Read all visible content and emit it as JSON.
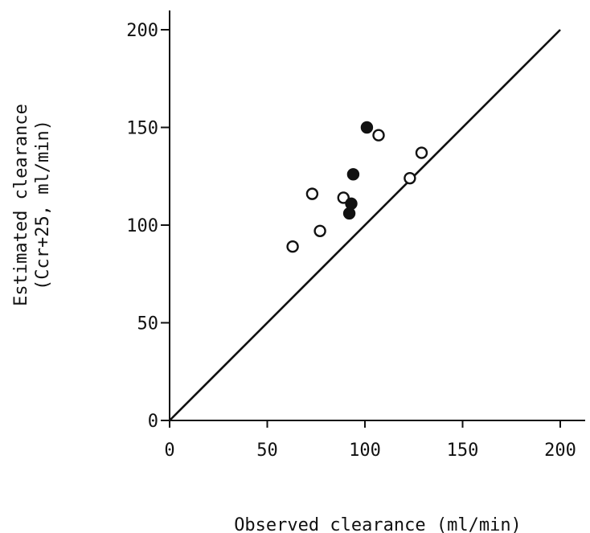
{
  "chart_data": {
    "type": "scatter",
    "xlabel": "Observed clearance (ml/min)",
    "ylabel_line1": "Estimated clearance",
    "ylabel_line2": "(Ccr+25, ml/min)",
    "xlim": [
      0,
      210
    ],
    "ylim": [
      0,
      210
    ],
    "x_ticks": [
      0,
      50,
      100,
      150,
      200
    ],
    "y_ticks": [
      0,
      50,
      100,
      150,
      200
    ],
    "x_tick_labels": [
      "0",
      "50",
      "100",
      "150",
      "200"
    ],
    "y_tick_labels": [
      "0",
      "50",
      "100",
      "150",
      "200"
    ],
    "grid": false,
    "reference_line": {
      "from": [
        0,
        0
      ],
      "to": [
        200,
        200
      ]
    },
    "series": [
      {
        "marker": "open-circle",
        "points": [
          {
            "x": 63,
            "y": 89
          },
          {
            "x": 73,
            "y": 116
          },
          {
            "x": 77,
            "y": 97
          },
          {
            "x": 89,
            "y": 114
          },
          {
            "x": 107,
            "y": 146
          },
          {
            "x": 123,
            "y": 124
          },
          {
            "x": 129,
            "y": 137
          }
        ]
      },
      {
        "marker": "filled-circle",
        "points": [
          {
            "x": 92,
            "y": 106
          },
          {
            "x": 93,
            "y": 111
          },
          {
            "x": 94,
            "y": 126
          },
          {
            "x": 101,
            "y": 150
          }
        ]
      }
    ],
    "colors": {
      "ink": "#111111",
      "background": "#ffffff"
    }
  }
}
